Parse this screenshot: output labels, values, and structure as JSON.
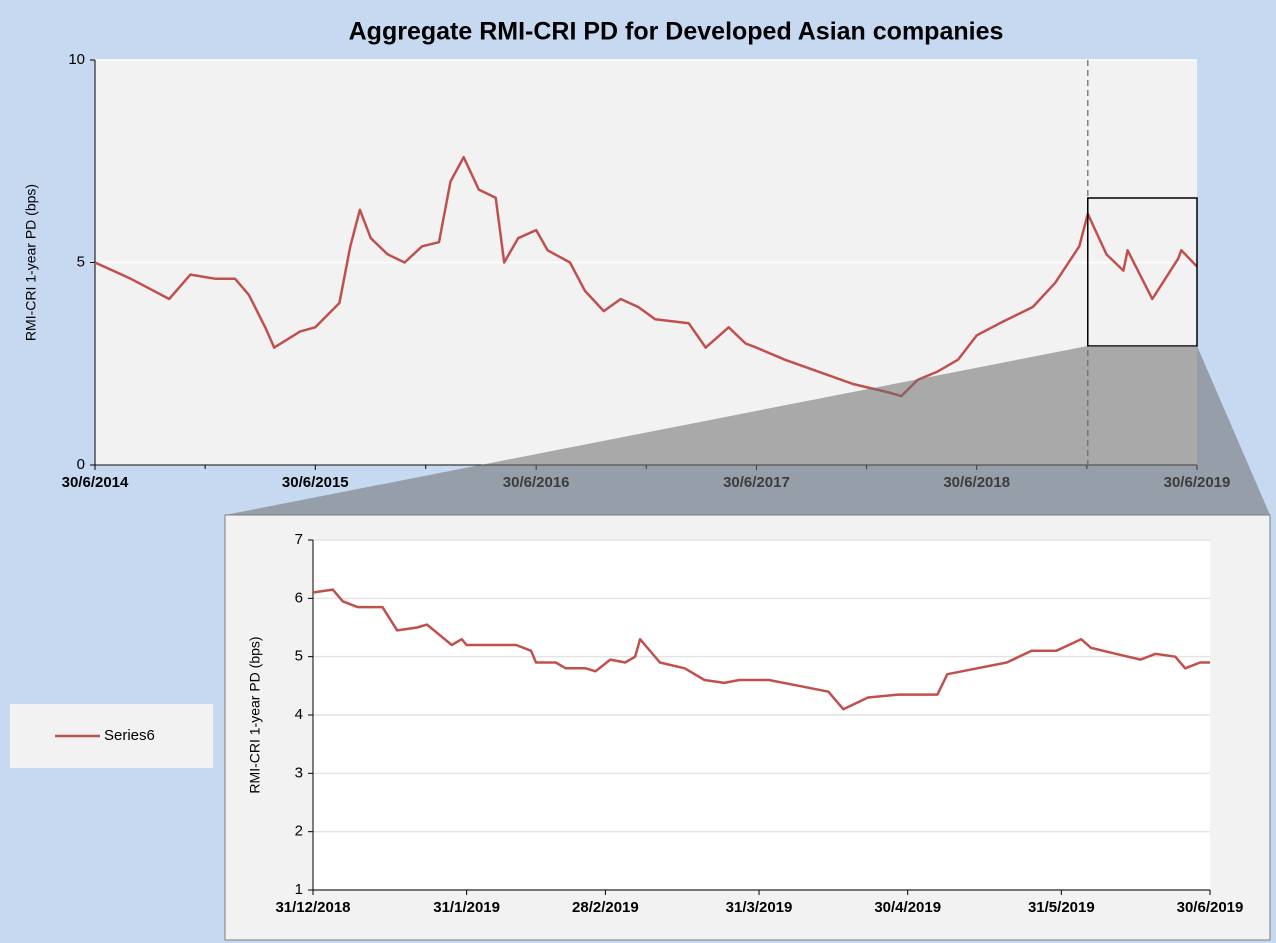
{
  "chart_data": [
    {
      "type": "line",
      "title": "Aggregate RMI-CRI PD for Developed Asian companies",
      "y_label": "RMI-CRI  1-year PD (bps)",
      "x": [
        "2014-06-30",
        "2014-08-28",
        "2014-10-31",
        "2014-12-05",
        "2015-01-15",
        "2015-02-17",
        "2015-03-12",
        "2015-04-08",
        "2015-04-23",
        "2015-06-05",
        "2015-06-30",
        "2015-08-09",
        "2015-08-27",
        "2015-09-12",
        "2015-09-30",
        "2015-10-28",
        "2015-11-25",
        "2015-12-24",
        "2016-01-21",
        "2016-02-09",
        "2016-03-02",
        "2016-03-27",
        "2016-04-24",
        "2016-05-08",
        "2016-05-31",
        "2016-06-30",
        "2016-07-19",
        "2016-08-25",
        "2016-09-19",
        "2016-10-20",
        "2016-11-17",
        "2016-12-16",
        "2017-01-13",
        "2017-03-10",
        "2017-04-07",
        "2017-05-15",
        "2017-06-12",
        "2017-06-30",
        "2017-08-16",
        "2017-10-12",
        "2017-12-07",
        "2018-02-02",
        "2018-02-25",
        "2018-03-24",
        "2018-04-25",
        "2018-05-30",
        "2018-06-30",
        "2018-08-07",
        "2018-10-01",
        "2018-11-07",
        "2018-12-17",
        "2018-12-31",
        "2019-01-31",
        "2019-02-28",
        "2019-03-07",
        "2019-04-17",
        "2019-05-30",
        "2019-06-04",
        "2019-06-30"
      ],
      "series": [
        {
          "name": "Series6",
          "color": "#c0504d",
          "values": [
            5.0,
            4.6,
            4.1,
            4.7,
            4.6,
            4.6,
            4.2,
            3.4,
            2.9,
            3.3,
            3.4,
            4.0,
            5.4,
            6.3,
            5.6,
            5.2,
            5.0,
            5.4,
            5.5,
            7.0,
            7.6,
            6.8,
            6.6,
            5.0,
            5.6,
            5.8,
            5.3,
            5.0,
            4.3,
            3.8,
            4.1,
            3.9,
            3.6,
            3.5,
            2.9,
            3.4,
            3.0,
            2.9,
            2.6,
            2.3,
            2.0,
            1.8,
            1.7,
            2.1,
            2.3,
            2.6,
            3.2,
            3.5,
            3.9,
            4.5,
            5.4,
            6.2,
            5.2,
            4.8,
            5.3,
            4.1,
            5.1,
            5.3,
            4.9
          ]
        }
      ],
      "xlim": [
        "2014-06-30",
        "2019-06-30"
      ],
      "xticks": [
        {
          "value": "2014-06-30",
          "label": "30/6/2014"
        },
        {
          "value": "2015-06-30",
          "label": "30/6/2015"
        },
        {
          "value": "2016-06-30",
          "label": "30/6/2016"
        },
        {
          "value": "2017-06-30",
          "label": "30/6/2017"
        },
        {
          "value": "2018-06-30",
          "label": "30/6/2018"
        },
        {
          "value": "2019-06-30",
          "label": "30/6/2019"
        }
      ],
      "ylim": [
        0,
        10
      ],
      "yticks": [
        0,
        5,
        10
      ],
      "grid": true,
      "legend": "left"
    },
    {
      "type": "line",
      "y_label": "RMI-CRI  1-year PD (bps)",
      "x": [
        "2018-12-31",
        "2019-01-04",
        "2019-01-06",
        "2019-01-09",
        "2019-01-14",
        "2019-01-17",
        "2019-01-21",
        "2019-01-23",
        "2019-01-28",
        "2019-01-30",
        "2019-01-31",
        "2019-02-10",
        "2019-02-13",
        "2019-02-14",
        "2019-02-18",
        "2019-02-20",
        "2019-02-24",
        "2019-02-26",
        "2019-03-01",
        "2019-03-04",
        "2019-03-06",
        "2019-03-07",
        "2019-03-11",
        "2019-03-16",
        "2019-03-20",
        "2019-03-24",
        "2019-03-27",
        "2019-04-02",
        "2019-04-08",
        "2019-04-14",
        "2019-04-16",
        "2019-04-17",
        "2019-04-22",
        "2019-04-28",
        "2019-05-06",
        "2019-05-08",
        "2019-05-14",
        "2019-05-20",
        "2019-05-25",
        "2019-05-30",
        "2019-06-04",
        "2019-06-06",
        "2019-06-11",
        "2019-06-16",
        "2019-06-19",
        "2019-06-23",
        "2019-06-25",
        "2019-06-28",
        "2019-06-30"
      ],
      "values": [
        6.1,
        6.15,
        5.95,
        5.85,
        5.85,
        5.45,
        5.5,
        5.55,
        5.2,
        5.3,
        5.2,
        5.2,
        5.1,
        4.9,
        4.9,
        4.8,
        4.8,
        4.75,
        4.95,
        4.9,
        5.0,
        5.3,
        4.9,
        4.8,
        4.6,
        4.55,
        4.6,
        4.6,
        4.5,
        4.4,
        4.2,
        4.1,
        4.3,
        4.35,
        4.35,
        4.7,
        4.8,
        4.9,
        5.1,
        5.1,
        5.3,
        5.15,
        5.05,
        4.95,
        5.05,
        5.0,
        4.8,
        4.9,
        4.9
      ],
      "color": "#c0504d",
      "xlim": [
        "2018-12-31",
        "2019-06-30"
      ],
      "xticks": [
        {
          "value": "2018-12-31",
          "label": "31/12/2018"
        },
        {
          "value": "2019-01-31",
          "label": "31/1/2019"
        },
        {
          "value": "2019-02-28",
          "label": "28/2/2019"
        },
        {
          "value": "2019-03-31",
          "label": "31/3/2019"
        },
        {
          "value": "2019-04-30",
          "label": "30/4/2019"
        },
        {
          "value": "2019-05-31",
          "label": "31/5/2019"
        },
        {
          "value": "2019-06-30",
          "label": "30/6/2019"
        }
      ],
      "ylim": [
        1,
        7
      ],
      "yticks": [
        1,
        2,
        3,
        4,
        5,
        6,
        7
      ],
      "grid": true
    }
  ]
}
